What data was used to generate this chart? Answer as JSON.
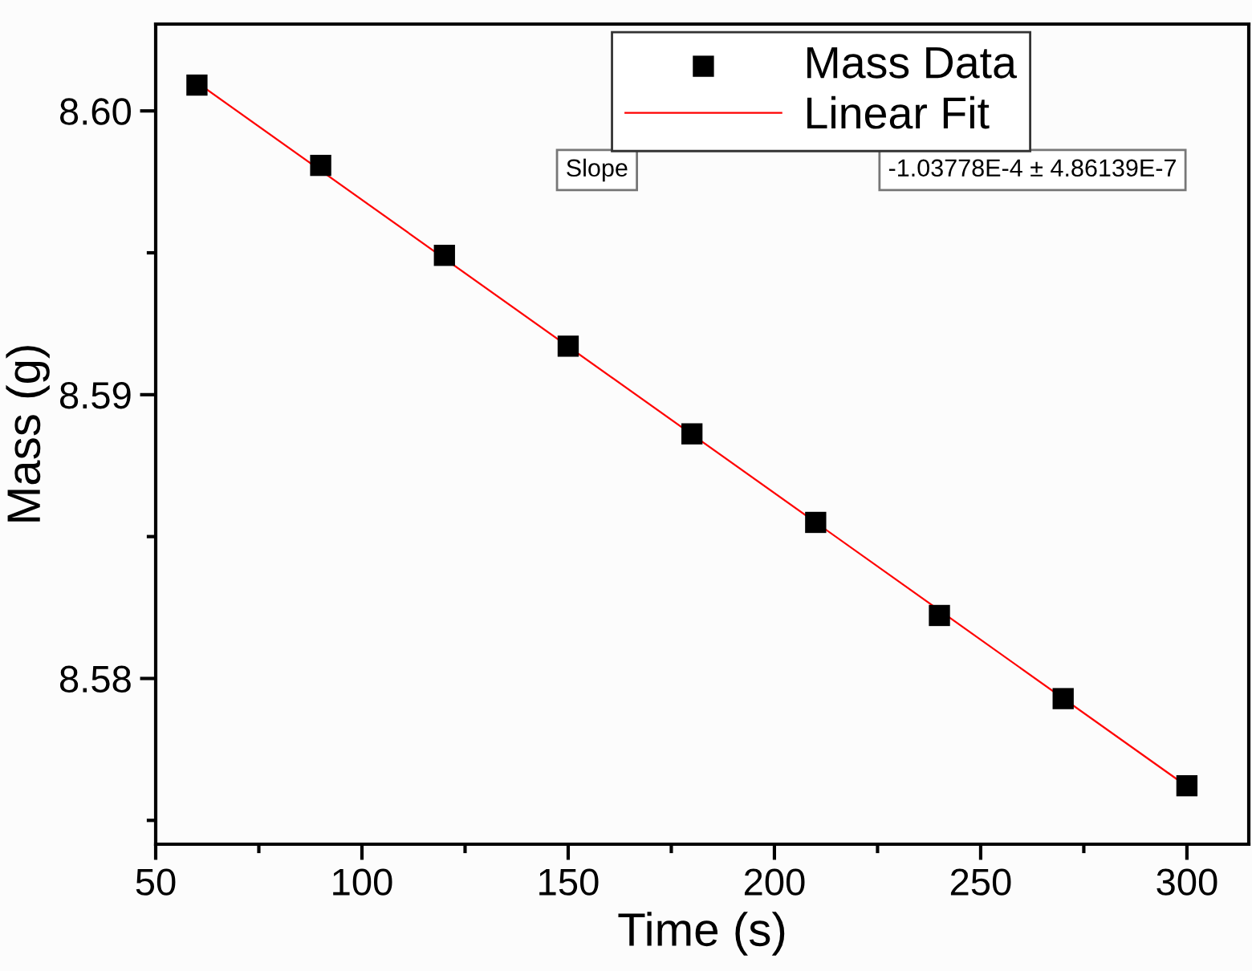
{
  "chart_data": {
    "type": "scatter",
    "xlabel": "Time (s)",
    "ylabel": "Mass (g)",
    "xlim": [
      50,
      315
    ],
    "ylim": [
      8.57416,
      8.60306
    ],
    "xticks": [
      50,
      {
        "value": 75,
        "label": null
      },
      100,
      {
        "value": 125,
        "label": null
      },
      150,
      {
        "value": 175,
        "label": null
      },
      200,
      {
        "value": 225,
        "label": null
      },
      250,
      {
        "value": 275,
        "label": null
      },
      300
    ],
    "yticks": [
      {
        "value": 8.575,
        "label": null
      },
      {
        "value": 8.58,
        "label": "8.58"
      },
      {
        "value": 8.585,
        "label": null
      },
      {
        "value": 8.59,
        "label": "8.59"
      },
      {
        "value": 8.595,
        "label": null
      },
      {
        "value": 8.6,
        "label": "8.60"
      }
    ],
    "x": [
      60,
      90,
      120,
      150,
      180,
      210,
      240,
      270,
      300
    ],
    "series": [
      {
        "name": "Mass Data",
        "color": "#000000",
        "marker": "square",
        "values": [
          8.60091,
          8.59808,
          8.59491,
          8.59171,
          8.58862,
          8.5855,
          8.58222,
          8.57929,
          8.57622
        ]
      },
      {
        "name": "Linear Fit",
        "type": "line",
        "color": "#ff0000",
        "marker": "none",
        "line_style": "solid",
        "x": [
          60,
          300
        ],
        "values": [
          8.601,
          8.5762
        ]
      }
    ],
    "legend": "top right",
    "grid": false,
    "annotations": [
      "Slope",
      "-1.03778E-4 ± 4.86139E-7"
    ]
  }
}
